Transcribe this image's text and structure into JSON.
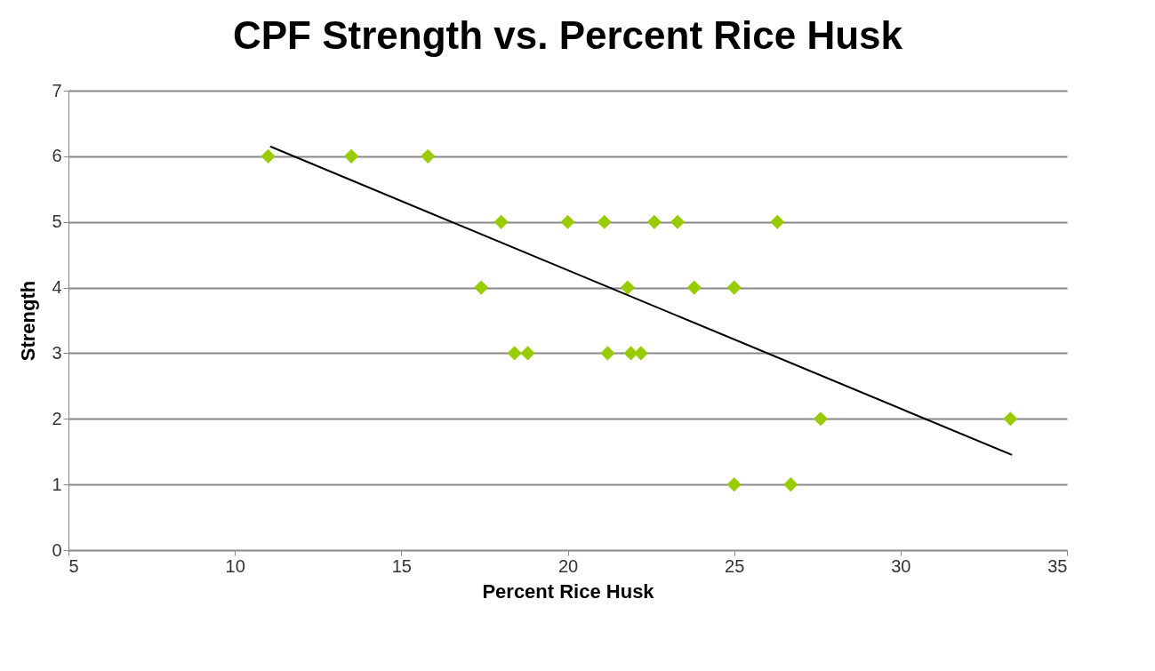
{
  "chart_data": {
    "type": "scatter",
    "title": "CPF Strength vs. Percent Rice Husk",
    "xlabel": "Percent Rice Husk",
    "ylabel": "Strength",
    "xlim": [
      5,
      35
    ],
    "xticks": [
      5,
      10,
      15,
      20,
      25,
      30,
      35
    ],
    "ylim": [
      0,
      7
    ],
    "yticks": [
      0,
      1,
      2,
      3,
      4,
      5,
      6,
      7
    ],
    "grid": "y",
    "series": [
      {
        "color": "#99cc00",
        "marker": "diamond",
        "x": [
          11.0,
          13.5,
          15.8,
          18.0,
          20.0,
          21.1,
          22.6,
          23.3,
          26.3,
          17.4,
          21.8,
          23.8,
          25.0,
          18.4,
          18.8,
          21.2,
          21.9,
          22.2,
          27.6,
          33.3,
          25.0,
          26.7
        ],
        "values": [
          6,
          6,
          6,
          5,
          5,
          5,
          5,
          5,
          5,
          4,
          4,
          4,
          4,
          3,
          3,
          3,
          3,
          3,
          2,
          2,
          1,
          1
        ]
      },
      {
        "type": "line",
        "color": "#000000",
        "line_style": "solid",
        "x": [
          11.06,
          33.35
        ],
        "values": [
          6.15,
          1.45
        ]
      }
    ]
  }
}
